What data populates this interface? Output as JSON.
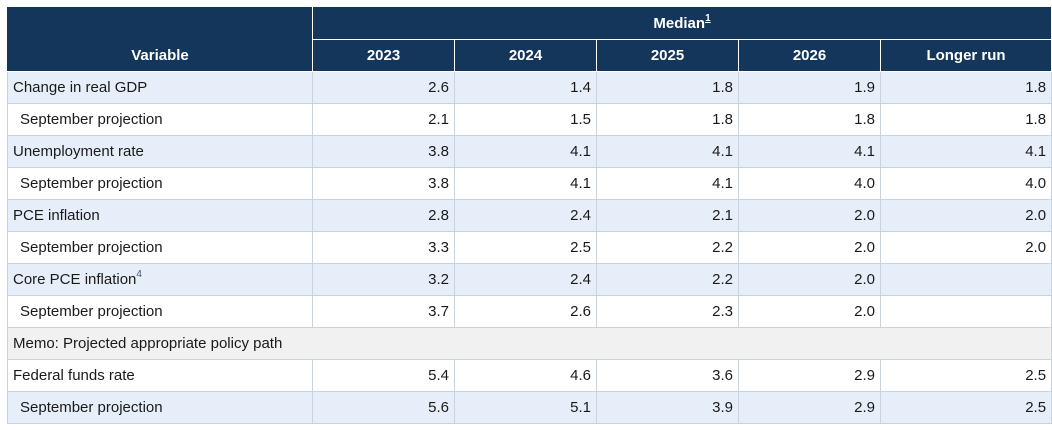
{
  "header": {
    "group_label": "Median",
    "group_footnote": "1",
    "variable_label": "Variable",
    "columns": [
      "2023",
      "2024",
      "2025",
      "2026",
      "Longer run"
    ]
  },
  "rows": [
    {
      "label": "Change in real GDP",
      "values": [
        "2.6",
        "1.4",
        "1.8",
        "1.9",
        "1.8"
      ]
    },
    {
      "label": "September projection",
      "values": [
        "2.1",
        "1.5",
        "1.8",
        "1.8",
        "1.8"
      ]
    },
    {
      "label": "Unemployment rate",
      "values": [
        "3.8",
        "4.1",
        "4.1",
        "4.1",
        "4.1"
      ]
    },
    {
      "label": "September projection",
      "values": [
        "3.8",
        "4.1",
        "4.1",
        "4.0",
        "4.0"
      ]
    },
    {
      "label": "PCE inflation",
      "values": [
        "2.8",
        "2.4",
        "2.1",
        "2.0",
        "2.0"
      ]
    },
    {
      "label": "September projection",
      "values": [
        "3.3",
        "2.5",
        "2.2",
        "2.0",
        "2.0"
      ]
    },
    {
      "label": "Core PCE inflation",
      "footnote": "4",
      "values": [
        "3.2",
        "2.4",
        "2.2",
        "2.0",
        ""
      ]
    },
    {
      "label": "September projection",
      "values": [
        "3.7",
        "2.6",
        "2.3",
        "2.0",
        ""
      ]
    },
    {
      "label": "Memo: Projected appropriate policy path"
    },
    {
      "label": "Federal funds rate",
      "values": [
        "5.4",
        "4.6",
        "3.6",
        "2.9",
        "2.5"
      ]
    },
    {
      "label": "September projection",
      "values": [
        "5.6",
        "5.1",
        "3.9",
        "2.9",
        "2.5"
      ]
    }
  ]
}
